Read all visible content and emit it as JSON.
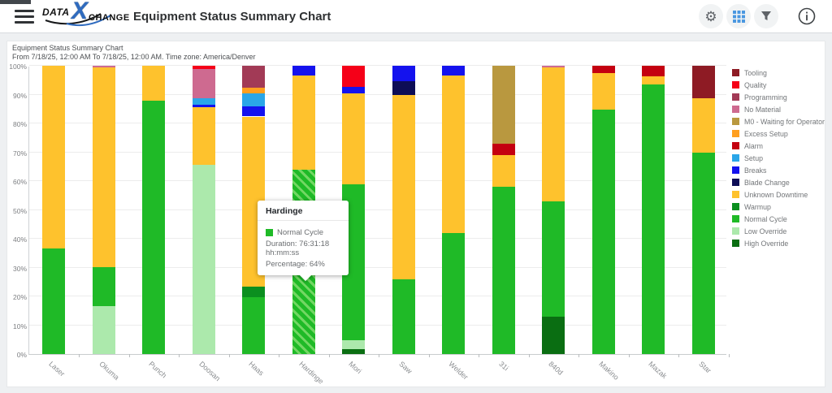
{
  "header": {
    "title": "Equipment Status Summary Chart",
    "logo": {
      "part1": "DATA",
      "x": "X",
      "part2": "CHANGE"
    },
    "accent_blue": "#2f6bbf"
  },
  "toolbar_icons": [
    "settings-gear",
    "table-grid",
    "filter-funnel",
    "info-circle"
  ],
  "report": {
    "title": "Equipment Status Summary Chart",
    "subtitle": "From 7/18/25, 12:00 AM To 7/18/25, 12:00 AM. Time zone: America/Denver"
  },
  "tooltip": {
    "title": "Hardinge",
    "status": "Normal Cycle",
    "duration": "Duration: 76:31:18 hh:mm:ss",
    "percentage": "Percentage: 64%",
    "swatch_color": "#1fba27"
  },
  "chart_data": {
    "type": "bar",
    "variant": "stacked-100-percent",
    "title": "Equipment Status Summary Chart",
    "xlabel": "",
    "ylabel": "",
    "ylim": [
      0,
      100
    ],
    "ytick_step": 10,
    "ytick_suffix": "%",
    "grid": true,
    "legend_position": "right",
    "statuses": [
      {
        "name": "Tooling",
        "color": "#8e1b24"
      },
      {
        "name": "Quality",
        "color": "#f50018"
      },
      {
        "name": "Programming",
        "color": "#a23a56"
      },
      {
        "name": "No Material",
        "color": "#ce6a90"
      },
      {
        "name": "M0 - Waiting for Operator",
        "color": "#b9983f"
      },
      {
        "name": "Excess Setup",
        "color": "#ff9f1f"
      },
      {
        "name": "Alarm",
        "color": "#c40010"
      },
      {
        "name": "Setup",
        "color": "#2aa6e8"
      },
      {
        "name": "Breaks",
        "color": "#1412ee"
      },
      {
        "name": "Blade Change",
        "color": "#0d0d56"
      },
      {
        "name": "Unknown Downtime",
        "color": "#fec22d"
      },
      {
        "name": "Warmup",
        "color": "#0b8f1f"
      },
      {
        "name": "Normal Cycle",
        "color": "#1fba27"
      },
      {
        "name": "Low Override",
        "color": "#ace9ac"
      },
      {
        "name": "High Override",
        "color": "#0a6e12"
      }
    ],
    "categories": [
      "Laser",
      "Okuma",
      "Punch",
      "Doosan",
      "Haas",
      "Hardinge",
      "Mori",
      "Saw",
      "Welder",
      "31i",
      "840d",
      "Makino",
      "Mazak",
      "Star"
    ],
    "bars": [
      {
        "name": "Laser",
        "segments": [
          [
            "Normal Cycle",
            36.5
          ],
          [
            "Unknown Downtime",
            63.5
          ]
        ]
      },
      {
        "name": "Okuma",
        "segments": [
          [
            "Low Override",
            16.6
          ],
          [
            "Normal Cycle",
            13.5
          ],
          [
            "Unknown Downtime",
            69.3
          ],
          [
            "No Material",
            0.6
          ]
        ]
      },
      {
        "name": "Punch",
        "segments": [
          [
            "Normal Cycle",
            88
          ],
          [
            "Unknown Downtime",
            12
          ]
        ]
      },
      {
        "name": "Doosan",
        "segments": [
          [
            "Low Override",
            65.7
          ],
          [
            "Unknown Downtime",
            19.9
          ],
          [
            "Breaks",
            1.0
          ],
          [
            "Setup",
            2.2
          ],
          [
            "No Material",
            10.1
          ],
          [
            "Quality",
            1.1
          ]
        ]
      },
      {
        "name": "Haas",
        "segments": [
          [
            "Normal Cycle",
            19.7
          ],
          [
            "Warmup",
            3.7
          ],
          [
            "Unknown Downtime",
            59.0
          ],
          [
            "Breaks",
            3.6
          ],
          [
            "Setup",
            4.5
          ],
          [
            "Excess Setup",
            1.9
          ],
          [
            "Programming",
            7.6
          ]
        ]
      },
      {
        "name": "Hardinge",
        "segments": [
          [
            "Normal Cycle",
            64
          ],
          [
            "Unknown Downtime",
            32.6
          ],
          [
            "Breaks",
            3.4
          ]
        ]
      },
      {
        "name": "Mori",
        "segments": [
          [
            "High Override",
            1.7
          ],
          [
            "Low Override",
            3.1
          ],
          [
            "Normal Cycle",
            54.2
          ],
          [
            "Unknown Downtime",
            31.5
          ],
          [
            "Breaks",
            2.1
          ],
          [
            "Quality",
            7.4
          ]
        ]
      },
      {
        "name": "Saw",
        "segments": [
          [
            "Normal Cycle",
            25.9
          ],
          [
            "Unknown Downtime",
            64.1
          ],
          [
            "Blade Change",
            4.7
          ],
          [
            "Breaks",
            5.3
          ]
        ]
      },
      {
        "name": "Welder",
        "segments": [
          [
            "Normal Cycle",
            42
          ],
          [
            "Unknown Downtime",
            54.6
          ],
          [
            "Breaks",
            3.4
          ]
        ]
      },
      {
        "name": "31i",
        "segments": [
          [
            "Normal Cycle",
            58
          ],
          [
            "Unknown Downtime",
            10.9
          ],
          [
            "Alarm",
            4.2
          ],
          [
            "M0 - Waiting for Operator",
            26.9
          ]
        ]
      },
      {
        "name": "840d",
        "segments": [
          [
            "High Override",
            13
          ],
          [
            "Normal Cycle",
            40
          ],
          [
            "Unknown Downtime",
            46.5
          ],
          [
            "No Material",
            0.5
          ]
        ]
      },
      {
        "name": "Makino",
        "segments": [
          [
            "Normal Cycle",
            84.8
          ],
          [
            "Unknown Downtime",
            12.7
          ],
          [
            "Alarm",
            2.5
          ]
        ]
      },
      {
        "name": "Mazak",
        "segments": [
          [
            "Normal Cycle",
            93.5
          ],
          [
            "Unknown Downtime",
            2.8
          ],
          [
            "Alarm",
            3.7
          ]
        ]
      },
      {
        "name": "Star",
        "segments": [
          [
            "Normal Cycle",
            70
          ],
          [
            "Unknown Downtime",
            18.7
          ],
          [
            "Tooling",
            11.3
          ]
        ]
      }
    ],
    "highlight": {
      "bar": "Hardinge",
      "status": "Normal Cycle"
    }
  }
}
